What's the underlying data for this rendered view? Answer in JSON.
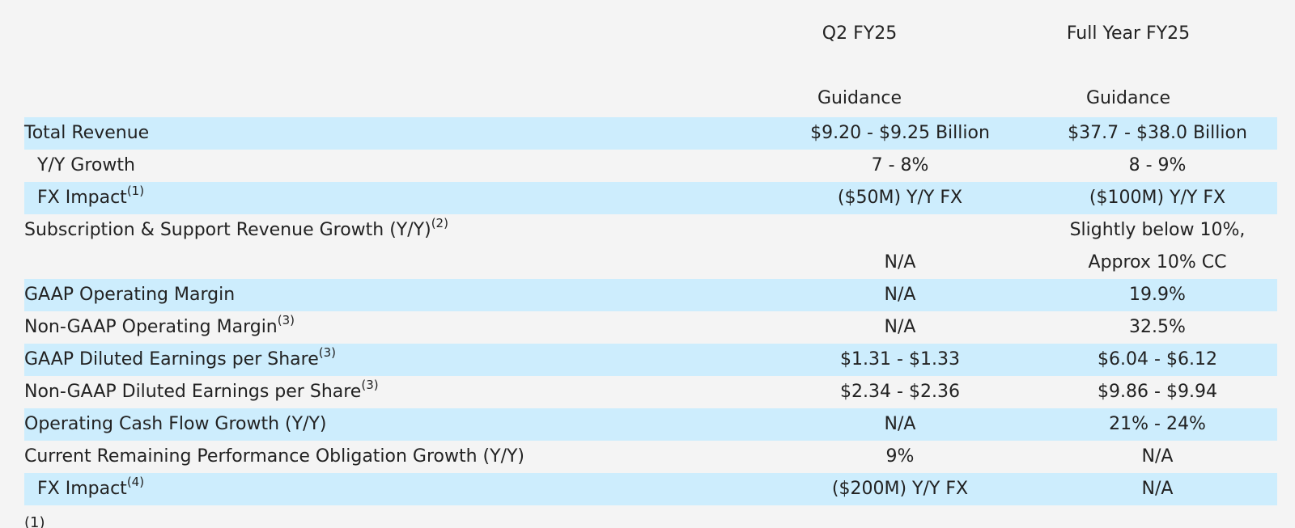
{
  "columns": {
    "q2": {
      "line1": "Q2 FY25",
      "line2": "Guidance"
    },
    "fy": {
      "line1": "Full Year FY25",
      "line2": "Guidance"
    }
  },
  "rows": [
    {
      "label": "Total Revenue",
      "q2": "$9.20 - $9.25 Billion",
      "fy": "$37.7 - $38.0 Billion"
    },
    {
      "label": "Y/Y Growth",
      "q2": "7 - 8%",
      "fy": "8 - 9%"
    },
    {
      "label": "FX Impact",
      "note": "(1)",
      "q2": "($50M) Y/Y FX",
      "fy": "($100M) Y/Y FX"
    },
    {
      "label": "Subscription & Support Revenue Growth (Y/Y)",
      "note": "(2)",
      "q2": "N/A",
      "fy_line1": "Slightly below 10%,",
      "fy_line2": "Approx 10% CC"
    },
    {
      "label": "GAAP Operating Margin",
      "q2": "N/A",
      "fy": "19.9%"
    },
    {
      "label": "Non-GAAP Operating Margin",
      "note": "(3)",
      "q2": "N/A",
      "fy": "32.5%"
    },
    {
      "label": "GAAP Diluted Earnings per Share",
      "note": "(3)",
      "q2": "$1.31 - $1.33",
      "fy": "$6.04 - $6.12"
    },
    {
      "label": "Non-GAAP Diluted Earnings per Share",
      "note": "(3)",
      "q2": "$2.34 - $2.36",
      "fy": "$9.86 - $9.94"
    },
    {
      "label": "Operating Cash Flow Growth (Y/Y)",
      "q2": "N/A",
      "fy": "21% - 24%"
    },
    {
      "label": "Current Remaining Performance Obligation Growth (Y/Y)",
      "q2": "9%",
      "fy": "N/A"
    },
    {
      "label": "FX Impact",
      "note": "(4)",
      "q2": "($200M) Y/Y FX",
      "fy": "N/A"
    }
  ],
  "footnote_peek": "(1)"
}
